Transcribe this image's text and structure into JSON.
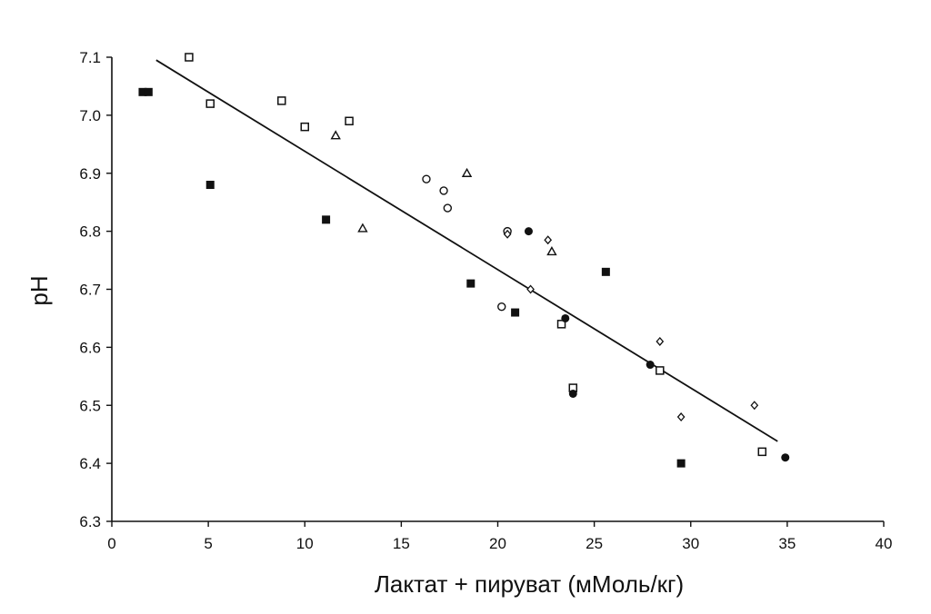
{
  "chart_data": {
    "type": "scatter",
    "title": "",
    "xlabel": "Лактат + пируват (мМоль/кг)",
    "ylabel": "pH",
    "xlim": [
      0,
      40
    ],
    "ylim": [
      6.3,
      7.1
    ],
    "x_ticks": [
      "0",
      "5",
      "10",
      "15",
      "20",
      "25",
      "30",
      "35",
      "40"
    ],
    "y_ticks": [
      "6.3",
      "6.4",
      "6.5",
      "6.6",
      "6.7",
      "6.8",
      "6.9",
      "7.0",
      "7.1"
    ],
    "grid": false,
    "legend": "none",
    "colors": {
      "axis": "#111111",
      "marker": "#111111",
      "fit_line": "#111111"
    },
    "series": [
      {
        "marker": "filled-square",
        "points": [
          [
            1.6,
            7.04
          ],
          [
            1.9,
            7.04
          ],
          [
            5.1,
            6.88
          ],
          [
            11.1,
            6.82
          ],
          [
            18.6,
            6.71
          ],
          [
            20.9,
            6.66
          ],
          [
            25.6,
            6.73
          ],
          [
            29.5,
            6.4
          ]
        ]
      },
      {
        "marker": "open-square",
        "points": [
          [
            4.0,
            7.1
          ],
          [
            5.1,
            7.02
          ],
          [
            8.8,
            7.025
          ],
          [
            10.0,
            6.98
          ],
          [
            12.3,
            6.99
          ],
          [
            23.3,
            6.64
          ],
          [
            23.9,
            6.53
          ],
          [
            28.4,
            6.56
          ],
          [
            33.7,
            6.42
          ]
        ]
      },
      {
        "marker": "open-triangle",
        "points": [
          [
            11.6,
            6.965
          ],
          [
            13.0,
            6.805
          ],
          [
            18.4,
            6.9
          ],
          [
            22.8,
            6.765
          ]
        ]
      },
      {
        "marker": "open-circle",
        "points": [
          [
            16.3,
            6.89
          ],
          [
            17.2,
            6.87
          ],
          [
            17.4,
            6.84
          ],
          [
            20.2,
            6.67
          ],
          [
            20.5,
            6.8
          ]
        ]
      },
      {
        "marker": "filled-circle",
        "points": [
          [
            21.6,
            6.8
          ],
          [
            23.5,
            6.65
          ],
          [
            23.9,
            6.52
          ],
          [
            27.9,
            6.57
          ],
          [
            34.9,
            6.41
          ]
        ]
      },
      {
        "marker": "open-diamond",
        "points": [
          [
            20.5,
            6.795
          ],
          [
            21.7,
            6.7
          ],
          [
            22.6,
            6.785
          ],
          [
            28.4,
            6.61
          ],
          [
            29.5,
            6.48
          ],
          [
            33.3,
            6.5
          ]
        ]
      }
    ],
    "fit_line": {
      "x": [
        2.3,
        34.5
      ],
      "y": [
        7.095,
        6.438
      ]
    }
  }
}
